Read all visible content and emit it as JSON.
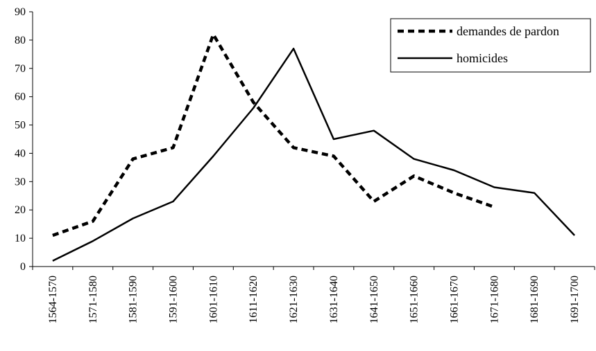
{
  "chart_data": {
    "type": "line",
    "title": "",
    "xlabel": "",
    "ylabel": "",
    "ylim": [
      0,
      90
    ],
    "yticks": [
      0,
      10,
      20,
      30,
      40,
      50,
      60,
      70,
      80,
      90
    ],
    "grid": false,
    "legend_position": "top-right",
    "categories": [
      "1564-1570",
      "1571-1580",
      "1581-1590",
      "1591-1600",
      "1601-1610",
      "1611-1620",
      "1621-1630",
      "1631-1640",
      "1641-1650",
      "1651-1660",
      "1661-1670",
      "1671-1680",
      "1681-1690",
      "1691-1700"
    ],
    "series": [
      {
        "name": "demandes de pardon",
        "style": "dashed",
        "color": "#000000",
        "values": [
          11,
          16,
          38,
          42,
          82,
          58,
          42,
          39,
          23,
          32,
          26,
          21,
          null,
          null
        ]
      },
      {
        "name": "homicides",
        "style": "solid",
        "color": "#000000",
        "values": [
          2,
          9,
          17,
          23,
          39,
          56,
          77,
          45,
          48,
          38,
          34,
          28,
          26,
          11
        ]
      }
    ]
  }
}
